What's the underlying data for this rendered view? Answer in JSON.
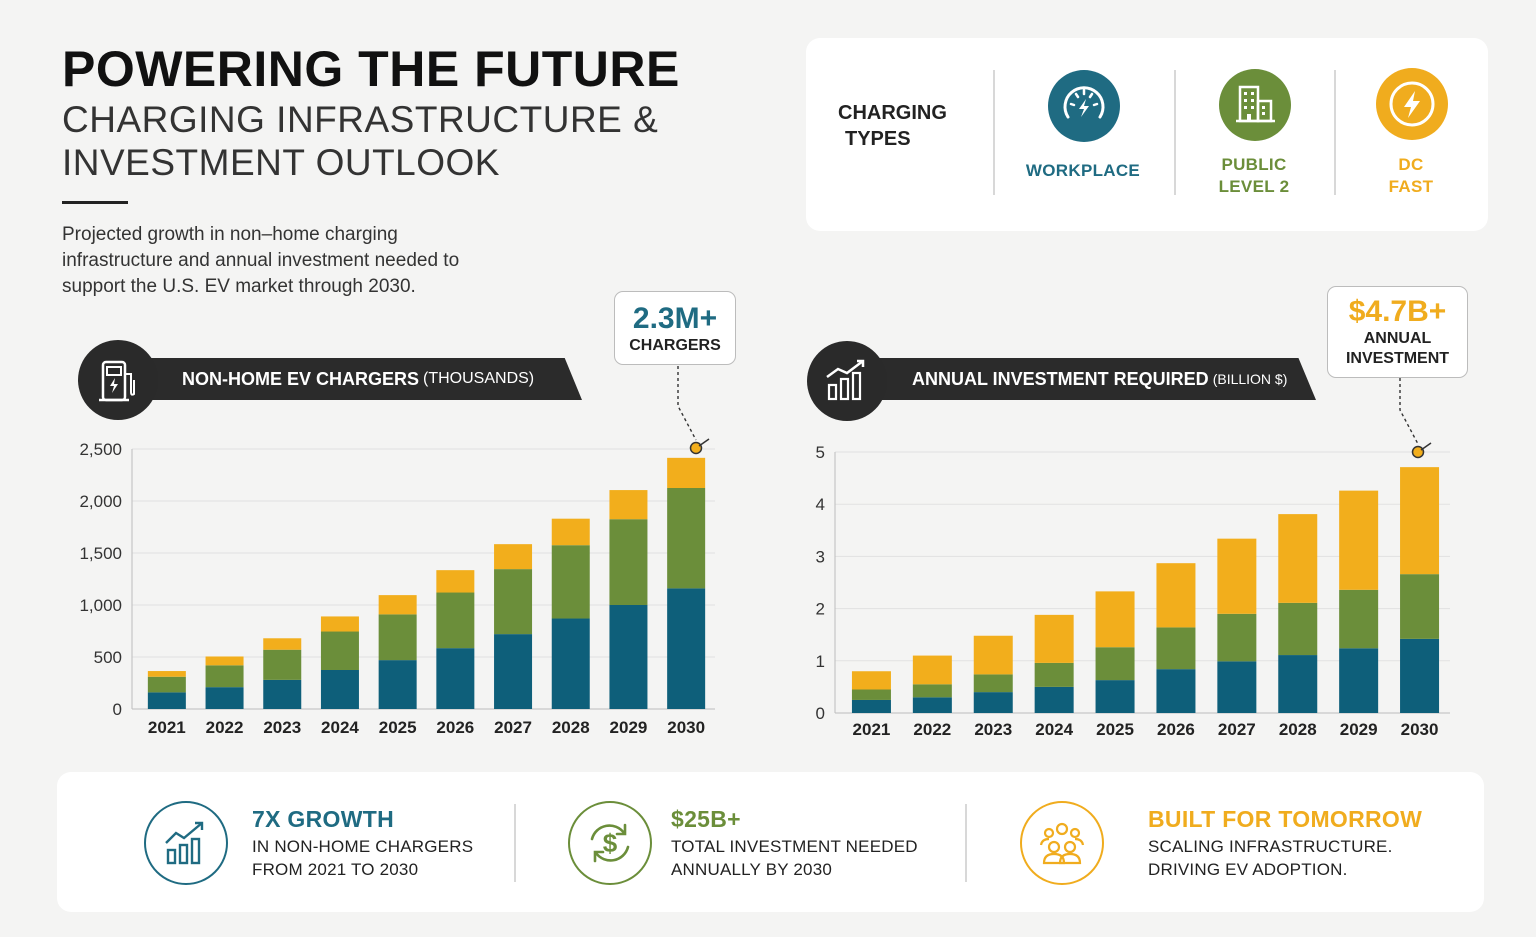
{
  "header": {
    "title": "POWERING THE FUTURE",
    "subtitle": "CHARGING INFRASTRUCTURE & INVESTMENT OUTLOOK",
    "intro": "Projected growth in non–home charging infrastructure and annual investment needed to support the U.S. EV market through 2030."
  },
  "charging_types": {
    "label_line1": "CHARGING",
    "label_line2": "TYPES",
    "items": [
      {
        "line1": "WORKPLACE",
        "line2": "",
        "color": "#1f6b82",
        "icon": "gauge-bolt-icon"
      },
      {
        "line1": "PUBLIC",
        "line2": "LEVEL 2",
        "color": "#6b8e3a",
        "icon": "building-icon"
      },
      {
        "line1": "DC",
        "line2": "FAST",
        "color": "#f0ac1e",
        "icon": "bolt-icon"
      }
    ]
  },
  "colors": {
    "teal": "#0e5f7a",
    "green": "#6b8e3a",
    "yellow": "#f2ae1c",
    "dark": "#2b2b2b"
  },
  "chargers_panel": {
    "banner_bold": "NON-HOME EV CHARGERS",
    "banner_unit": "(THOUSANDS)",
    "callout_value": "2.3M+",
    "callout_label": "CHARGERS"
  },
  "investment_panel": {
    "banner_bold": "ANNUAL INVESTMENT REQUIRED",
    "banner_unit": "(BILLION $)",
    "callout_value": "$4.7B+",
    "callout_label_1": "ANNUAL",
    "callout_label_2": "INVESTMENT"
  },
  "chart_data": [
    {
      "type": "bar",
      "stacked": true,
      "title": "NON-HOME EV CHARGERS (THOUSANDS)",
      "categories": [
        "2021",
        "2022",
        "2023",
        "2024",
        "2025",
        "2026",
        "2027",
        "2028",
        "2029",
        "2030"
      ],
      "ylim": [
        0,
        2500
      ],
      "yticks": [
        0,
        500,
        1000,
        1500,
        2000,
        2500
      ],
      "ytick_labels": [
        "0",
        "500",
        "1,000",
        "1,500",
        "2,000",
        "2,500"
      ],
      "series": [
        {
          "name": "Workplace",
          "color": "#0e5f7a",
          "values": [
            160,
            210,
            280,
            375,
            470,
            585,
            720,
            870,
            1000,
            1160
          ]
        },
        {
          "name": "Public Level 2",
          "color": "#6b8e3a",
          "values": [
            150,
            210,
            290,
            370,
            440,
            535,
            625,
            705,
            825,
            965
          ]
        },
        {
          "name": "DC Fast",
          "color": "#f2ae1c",
          "values": [
            55,
            85,
            110,
            145,
            185,
            215,
            240,
            255,
            280,
            290
          ]
        }
      ]
    },
    {
      "type": "bar",
      "stacked": true,
      "title": "ANNUAL INVESTMENT REQUIRED (BILLION $)",
      "categories": [
        "2021",
        "2022",
        "2023",
        "2024",
        "2025",
        "2026",
        "2027",
        "2028",
        "2029",
        "2030"
      ],
      "ylim": [
        0,
        5
      ],
      "yticks": [
        0,
        1,
        2,
        3,
        4,
        5
      ],
      "ytick_labels": [
        "0",
        "1",
        "2",
        "3",
        "4",
        "5"
      ],
      "series": [
        {
          "name": "Workplace",
          "color": "#0e5f7a",
          "values": [
            0.25,
            0.3,
            0.4,
            0.5,
            0.63,
            0.84,
            0.99,
            1.11,
            1.24,
            1.42
          ]
        },
        {
          "name": "Public Level 2",
          "color": "#6b8e3a",
          "values": [
            0.2,
            0.25,
            0.34,
            0.46,
            0.63,
            0.8,
            0.91,
            1.0,
            1.12,
            1.24
          ]
        },
        {
          "name": "DC Fast",
          "color": "#f2ae1c",
          "values": [
            0.35,
            0.55,
            0.74,
            0.92,
            1.07,
            1.23,
            1.44,
            1.7,
            1.9,
            2.05
          ]
        }
      ]
    }
  ],
  "stats": [
    {
      "head": "7X GROWTH",
      "line1": "IN NON-HOME CHARGERS",
      "line2": "FROM 2021 TO 2030",
      "color": "#1f6b82",
      "icon": "growth-chart-icon"
    },
    {
      "head": "$25B+",
      "line1": "TOTAL INVESTMENT NEEDED",
      "line2": "ANNUALLY BY 2030",
      "color": "#6b8e3a",
      "icon": "dollar-cycle-icon"
    },
    {
      "head": "BUILT FOR TOMORROW",
      "line1": "SCALING INFRASTRUCTURE.",
      "line2": "DRIVING EV ADOPTION.",
      "color": "#f0ac1e",
      "icon": "people-group-icon"
    }
  ]
}
